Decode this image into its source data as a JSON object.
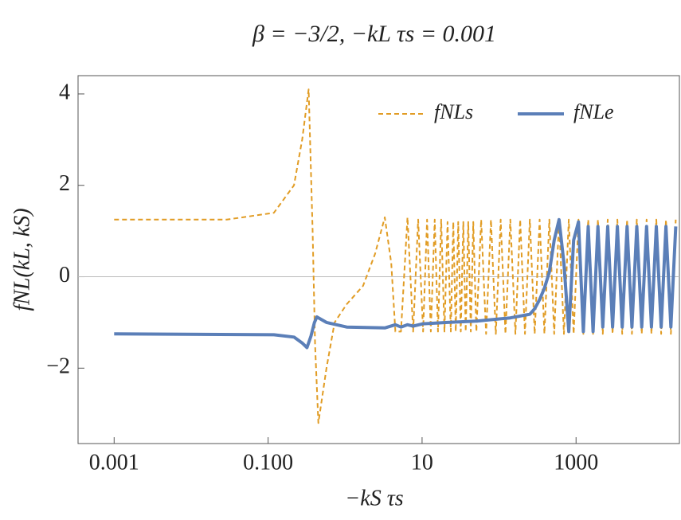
{
  "chart_data": {
    "type": "line",
    "title": "β = −3/2,   −kL τs = 0.001",
    "x_label": "−kS τs",
    "y_label": "fNL(kL, kS)",
    "log_x": true,
    "xlim": [
      0.00034,
      22000
    ],
    "ylim": [
      -3.65,
      4.4
    ],
    "xticks": [
      0.001,
      {
        "value": 0.1,
        "label": "0.100"
      },
      10,
      1000
    ],
    "yticks": [
      4,
      2,
      0,
      {
        "value": -2,
        "label": "−2"
      }
    ],
    "legend": "top-right",
    "series": [
      {
        "name": "fNLs",
        "color": "#e19c24",
        "dashed": true,
        "x": [
          0.001,
          0.029,
          0.119,
          0.217,
          0.277,
          0.336,
          0.379,
          0.408,
          0.45,
          0.573,
          0.73,
          1.05,
          1.71,
          2.45,
          3.28,
          3.98,
          4.5,
          5.32,
          6.47,
          7.66,
          8.9,
          10.3,
          11.6,
          13.0,
          14.6,
          16.1,
          17.7,
          19.5,
          21.4,
          23.6,
          25.4,
          27.4,
          29.5,
          31.8,
          34.3,
          36.9,
          39.8,
          42.9,
          46.2,
          50.7,
          58.6,
          67.9,
          78.5,
          90.8,
          105,
          121,
          140,
          163,
          188,
          217,
          251,
          290,
          336,
          388,
          450,
          520,
          601,
          695,
          804,
          929,
          1076,
          1245,
          1439,
          1663,
          1923,
          2223,
          2576,
          2979,
          3443,
          3981,
          4603,
          5321,
          6152,
          7129,
          8241,
          9528,
          11015,
          12735,
          14723,
          17061,
          19724
        ],
        "values": [
          1.25,
          1.25,
          1.4,
          2.0,
          3.0,
          4.1,
          1.0,
          -1.5,
          -3.2,
          -2.0,
          -1.0,
          -0.6,
          -0.2,
          0.5,
          1.3,
          0.3,
          -1.2,
          -1.2,
          1.3,
          -1.2,
          1.25,
          -1.2,
          1.25,
          -1.2,
          1.25,
          -1.2,
          1.25,
          -1.2,
          1.2,
          -1.2,
          1.2,
          -1.2,
          1.2,
          -1.2,
          1.2,
          -1.2,
          1.2,
          -1.2,
          1.2,
          -1.2,
          1.25,
          -1.25,
          1.25,
          -1.25,
          1.25,
          -1.25,
          1.25,
          -1.25,
          1.25,
          -1.25,
          1.25,
          -1.25,
          1.25,
          -1.25,
          1.25,
          -1.25,
          1.25,
          -1.25,
          1.25,
          -1.25,
          1.25,
          -1.25,
          1.25,
          -1.25,
          1.25,
          -1.25,
          1.25,
          -1.25,
          1.25,
          -1.25,
          1.25,
          -1.25,
          1.25,
          -1.25,
          1.25,
          -1.25,
          1.25,
          -1.25,
          1.25,
          -1.25,
          1.25
        ]
      },
      {
        "name": "fNLe",
        "color": "#5b7fb8",
        "dashed": false,
        "x": [
          0.001,
          0.119,
          0.217,
          0.277,
          0.32,
          0.36,
          0.4,
          0.43,
          0.573,
          1.05,
          3.28,
          4.5,
          5.32,
          6.47,
          7.66,
          10.3,
          21.4,
          50.7,
          140,
          251,
          290,
          336,
          388,
          450,
          520,
          601,
          695,
          804,
          929,
          1076,
          1245,
          1439,
          1663,
          1923,
          2223,
          2576,
          2979,
          3443,
          3981,
          4603,
          5321,
          6152,
          7129,
          8241,
          9528,
          11015,
          12735,
          14723,
          17061,
          19724
        ],
        "values": [
          -1.25,
          -1.27,
          -1.32,
          -1.45,
          -1.55,
          -1.3,
          -1.0,
          -0.88,
          -1.0,
          -1.1,
          -1.12,
          -1.05,
          -1.1,
          -1.05,
          -1.08,
          -1.03,
          -1.0,
          -0.97,
          -0.9,
          -0.82,
          -0.7,
          -0.5,
          -0.25,
          0.1,
          0.8,
          1.25,
          0.3,
          -1.2,
          0.8,
          1.2,
          -1.2,
          1.1,
          -1.2,
          1.1,
          -1.1,
          1.1,
          -1.1,
          1.1,
          -1.1,
          1.1,
          -1.1,
          1.1,
          -1.1,
          1.1,
          -1.1,
          1.1,
          -1.1,
          1.1,
          -1.1,
          1.1
        ]
      }
    ]
  }
}
